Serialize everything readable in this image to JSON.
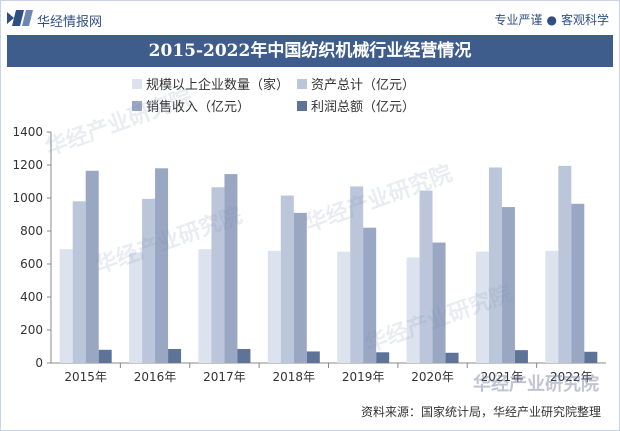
{
  "header": {
    "brand": "华经情报网",
    "slogan_left": "专业严谨",
    "slogan_dot": "●",
    "slogan_right": "客观科学"
  },
  "title": "2015-2022年中国纺织机械行业经营情况",
  "source": "资料来源：国家统计局，华经产业研究院整理",
  "watermark": "华经产业研究院",
  "colors": {
    "brand": "#2f4f84",
    "title_bar": "#3e5c8c",
    "series": [
      "#dde3ee",
      "#bcc6da",
      "#99a7c3",
      "#5f7399"
    ]
  },
  "chart_data": {
    "type": "bar",
    "categories": [
      "2015年",
      "2016年",
      "2017年",
      "2018年",
      "2019年",
      "2020年",
      "2021年",
      "2022年"
    ],
    "series": [
      {
        "name": "规模以上企业数量（家）",
        "values": [
          690,
          670,
          690,
          680,
          675,
          640,
          675,
          680
        ]
      },
      {
        "name": "资产总计（亿元）",
        "values": [
          980,
          995,
          1065,
          1015,
          1070,
          1045,
          1185,
          1195
        ]
      },
      {
        "name": "销售收入（亿元）",
        "values": [
          1165,
          1180,
          1145,
          910,
          820,
          730,
          945,
          965
        ]
      },
      {
        "name": "利润总额（亿元）",
        "values": [
          80,
          85,
          85,
          70,
          65,
          62,
          78,
          68
        ]
      }
    ],
    "yticks": [
      0,
      200,
      400,
      600,
      800,
      1000,
      1200,
      1400
    ],
    "ylim": [
      0,
      1400
    ],
    "legend_position": "top",
    "grid": false
  }
}
